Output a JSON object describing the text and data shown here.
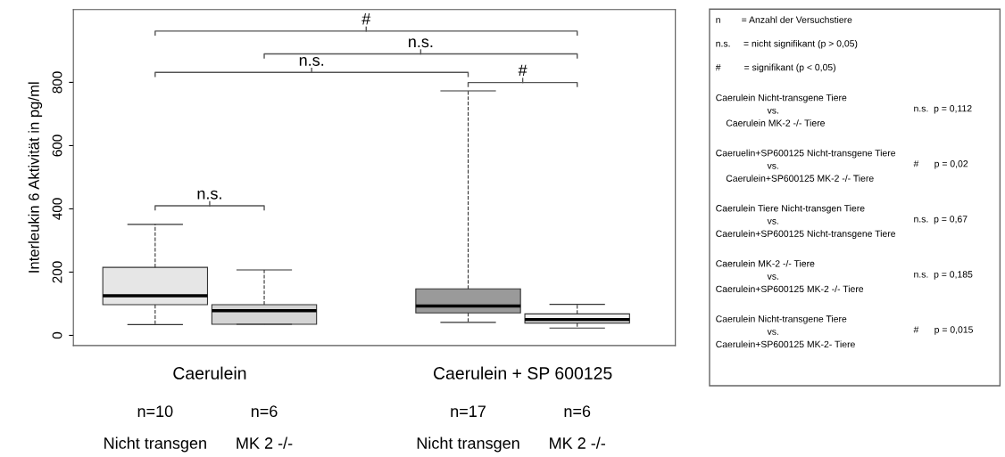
{
  "chart_data": {
    "type": "box",
    "ylabel": "Interleukin 6 Aktivität in pg/ml",
    "categories": [
      "Nicht transgen",
      "MK 2 -/-",
      "Nicht transgen",
      "MK 2 -/-"
    ],
    "boxes": [
      {
        "low": 34,
        "q1": 97,
        "median": 125,
        "q3": 215,
        "high": 351
      },
      {
        "low": 35,
        "q1": 35,
        "median": 78,
        "q3": 97,
        "high": 207
      },
      {
        "low": 41,
        "q1": 71,
        "median": 93,
        "q3": 147,
        "high": 773
      },
      {
        "low": 23,
        "q1": 39,
        "median": 50,
        "q3": 68,
        "high": 98
      }
    ],
    "colors": [
      "#e6e6e6",
      "#d4d4d4",
      "#9a9a9a",
      "#f4f4f4"
    ],
    "ylim": [
      -32,
      1030
    ],
    "yticks": [
      0,
      200,
      400,
      600,
      800
    ],
    "grid": false,
    "annotations": [
      "n.s.",
      "n.s.",
      "#",
      "n.s.",
      "#",
      "Caerulein",
      "Caerulein + SP 600125",
      "n=10",
      "n=6",
      "n=17",
      "n=6",
      "n        = Anzahl der Versuchstiere",
      "n.s.     = nicht signifikant (p > 0,05)",
      "#         = signifikant (p < 0,05)",
      "Caerulein Nicht-transgene Tiere\n                    vs.\n    Caerulein MK-2 -/- Tiere",
      "n.s.  p = 0,112",
      "Caeruelin+SP600125 Nicht-transgene Tiere\n                    vs.\n    Caerulein+SP600125 MK-2 -/- Tiere",
      "#      p = 0,02",
      "Caerulein Tiere Nicht-transgen Tiere\n                    vs.\nCaerulein+SP600125 Nicht-transgene Tiere",
      "n.s.  p = 0,67",
      "Caerulein MK-2 -/- Tiere\n                    vs.\nCaerulein+SP600125 MK-2 -/- Tiere",
      "n.s.  p = 0,185",
      "Caerulein Nicht-transgene Tiere\n                    vs.\nCaerulein+SP600125 MK-2- Tiere",
      "#      p = 0,015"
    ]
  }
}
